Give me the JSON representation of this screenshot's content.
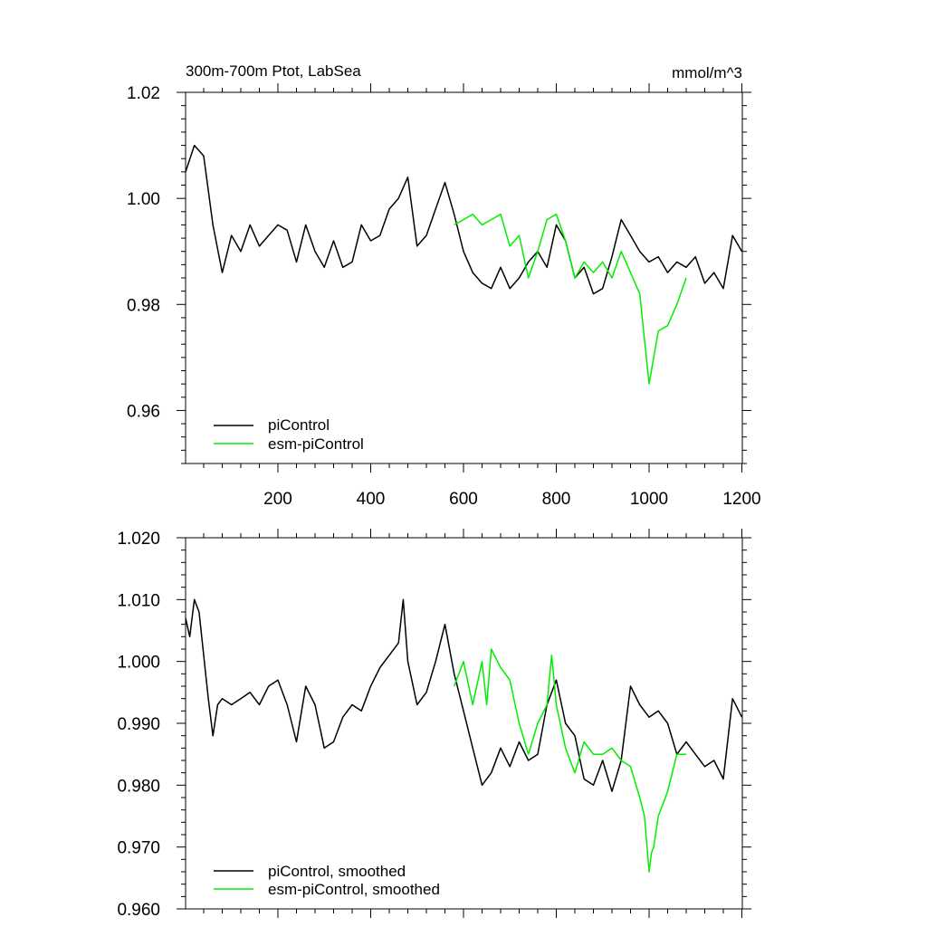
{
  "chart_data": [
    {
      "type": "line",
      "title": "300m-700m Ptot, LabSea",
      "units": "mmol/m^3",
      "xlim": [
        1,
        1201
      ],
      "ylim": [
        0.95,
        1.02
      ],
      "xticks": [
        200,
        400,
        600,
        800,
        1000,
        1200
      ],
      "yticks": [
        0.96,
        0.98,
        1.0,
        1.02
      ],
      "ytick_labels": [
        "0.96",
        "0.98",
        "1.00",
        "1.02"
      ],
      "legend_position": "bottom-left",
      "series": [
        {
          "name": "piControl",
          "color": "#000000",
          "x": [
            1,
            20,
            40,
            60,
            80,
            100,
            120,
            140,
            160,
            180,
            200,
            220,
            240,
            260,
            280,
            300,
            320,
            340,
            360,
            380,
            400,
            420,
            440,
            460,
            480,
            500,
            520,
            540,
            560,
            580,
            600,
            620,
            640,
            660,
            680,
            700,
            720,
            740,
            760,
            780,
            800,
            820,
            840,
            860,
            880,
            900,
            920,
            940,
            960,
            980,
            1000,
            1020,
            1040,
            1060,
            1080,
            1100,
            1120,
            1140,
            1160,
            1180,
            1200
          ],
          "y": [
            1.005,
            1.01,
            1.008,
            0.995,
            0.986,
            0.993,
            0.99,
            0.995,
            0.991,
            0.993,
            0.995,
            0.994,
            0.988,
            0.995,
            0.99,
            0.987,
            0.992,
            0.987,
            0.988,
            0.995,
            0.992,
            0.993,
            0.998,
            1.0,
            1.004,
            0.991,
            0.993,
            0.998,
            1.003,
            0.997,
            0.99,
            0.986,
            0.984,
            0.983,
            0.987,
            0.983,
            0.985,
            0.988,
            0.99,
            0.987,
            0.995,
            0.992,
            0.985,
            0.987,
            0.982,
            0.983,
            0.989,
            0.996,
            0.993,
            0.99,
            0.988,
            0.989,
            0.986,
            0.988,
            0.987,
            0.989,
            0.984,
            0.986,
            0.983,
            0.993,
            0.99
          ]
        },
        {
          "name": "esm-piControl",
          "color": "#00ee00",
          "x": [
            580,
            600,
            620,
            640,
            660,
            680,
            700,
            720,
            740,
            760,
            780,
            800,
            820,
            840,
            860,
            880,
            900,
            920,
            940,
            960,
            980,
            1000,
            1010,
            1020,
            1040,
            1060,
            1080
          ],
          "y": [
            0.995,
            0.996,
            0.997,
            0.995,
            0.996,
            0.997,
            0.991,
            0.993,
            0.985,
            0.99,
            0.996,
            0.997,
            0.992,
            0.985,
            0.988,
            0.986,
            0.988,
            0.985,
            0.99,
            0.986,
            0.982,
            0.965,
            0.97,
            0.975,
            0.976,
            0.98,
            0.985
          ]
        }
      ]
    },
    {
      "type": "line",
      "xlim": [
        1,
        1201
      ],
      "ylim": [
        0.96,
        1.02
      ],
      "xticks": [
        200,
        400,
        600,
        800,
        1000,
        1200
      ],
      "yticks": [
        0.96,
        0.97,
        0.98,
        0.99,
        1.0,
        1.01,
        1.02
      ],
      "ytick_labels": [
        "0.960",
        "0.970",
        "0.980",
        "0.990",
        "1.000",
        "1.010",
        "1.020"
      ],
      "legend_position": "bottom-left",
      "series": [
        {
          "name": "piControl, smoothed",
          "color": "#000000",
          "x": [
            1,
            10,
            20,
            30,
            40,
            50,
            60,
            70,
            80,
            100,
            120,
            140,
            160,
            180,
            200,
            220,
            240,
            260,
            280,
            300,
            320,
            340,
            360,
            380,
            400,
            420,
            440,
            460,
            470,
            480,
            500,
            520,
            540,
            560,
            580,
            600,
            620,
            640,
            660,
            680,
            700,
            720,
            740,
            760,
            780,
            800,
            820,
            840,
            860,
            880,
            900,
            920,
            940,
            960,
            980,
            1000,
            1020,
            1040,
            1060,
            1080,
            1100,
            1120,
            1140,
            1160,
            1180,
            1200
          ],
          "y": [
            1.007,
            1.004,
            1.01,
            1.008,
            1.001,
            0.994,
            0.988,
            0.993,
            0.994,
            0.993,
            0.994,
            0.995,
            0.993,
            0.996,
            0.997,
            0.993,
            0.987,
            0.996,
            0.993,
            0.986,
            0.987,
            0.991,
            0.993,
            0.992,
            0.996,
            0.999,
            1.001,
            1.003,
            1.01,
            1.0,
            0.993,
            0.995,
            1.0,
            1.006,
            0.998,
            0.992,
            0.986,
            0.98,
            0.982,
            0.986,
            0.983,
            0.987,
            0.984,
            0.985,
            0.993,
            0.997,
            0.99,
            0.988,
            0.981,
            0.98,
            0.984,
            0.979,
            0.984,
            0.996,
            0.993,
            0.991,
            0.992,
            0.99,
            0.985,
            0.987,
            0.985,
            0.983,
            0.984,
            0.981,
            0.994,
            0.991
          ]
        },
        {
          "name": "esm-piControl, smoothed",
          "color": "#00ee00",
          "x": [
            580,
            600,
            620,
            640,
            650,
            660,
            680,
            700,
            720,
            740,
            760,
            780,
            790,
            800,
            820,
            840,
            860,
            880,
            900,
            920,
            940,
            960,
            980,
            990,
            1000,
            1005,
            1010,
            1020,
            1030,
            1040,
            1060,
            1080
          ],
          "y": [
            0.996,
            1.0,
            0.993,
            1.0,
            0.993,
            1.002,
            0.999,
            0.997,
            0.99,
            0.985,
            0.99,
            0.993,
            1.001,
            0.993,
            0.986,
            0.982,
            0.987,
            0.985,
            0.985,
            0.986,
            0.984,
            0.983,
            0.978,
            0.975,
            0.966,
            0.969,
            0.97,
            0.975,
            0.977,
            0.979,
            0.985,
            0.985
          ]
        }
      ]
    }
  ]
}
